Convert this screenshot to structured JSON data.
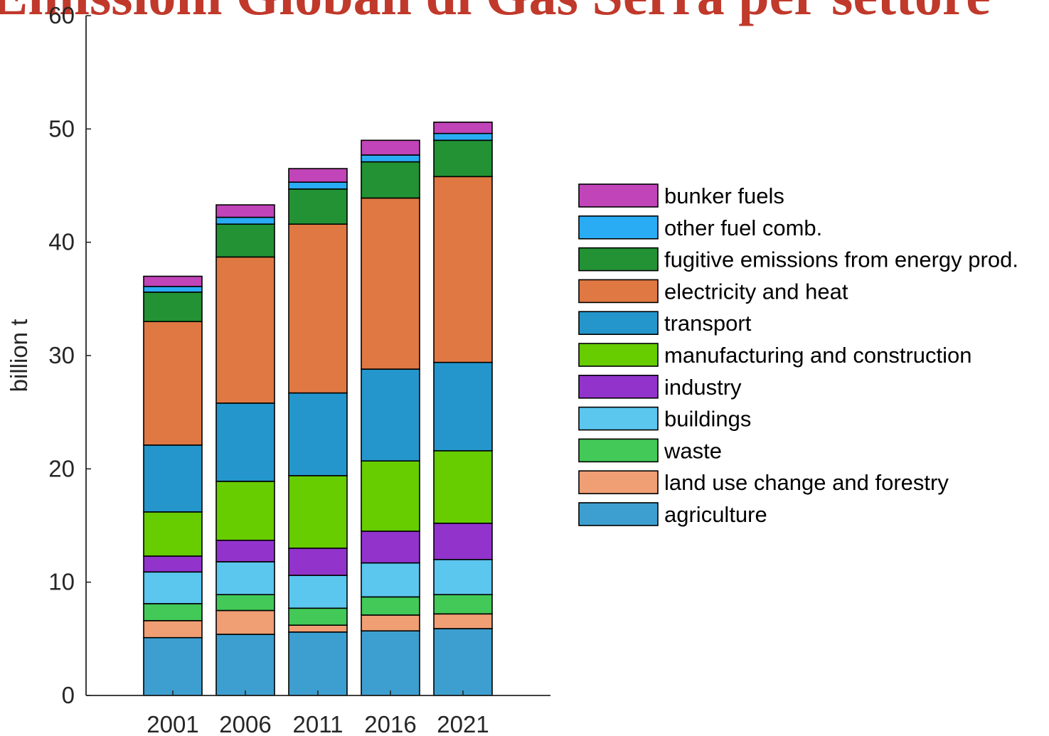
{
  "chart_data": {
    "type": "bar",
    "stacked": true,
    "title": "Emissioni Globali di Gas Serra per settore",
    "xlabel": "",
    "ylabel": "billion t",
    "ylim": [
      0,
      60
    ],
    "yticks": [
      0,
      10,
      20,
      30,
      40,
      50,
      60
    ],
    "grid": false,
    "legend_position": "right",
    "categories": [
      "2001",
      "2006",
      "2011",
      "2016",
      "2021"
    ],
    "series": [
      {
        "name": "agriculture",
        "color": "#3d9fd0",
        "values": [
          5.1,
          5.4,
          5.6,
          5.7,
          5.9
        ]
      },
      {
        "name": "land use change and forestry",
        "color": "#f09e74",
        "values": [
          1.5,
          2.1,
          0.6,
          1.4,
          1.3
        ]
      },
      {
        "name": "waste",
        "color": "#42c957",
        "values": [
          1.5,
          1.4,
          1.5,
          1.6,
          1.7
        ]
      },
      {
        "name": "buildings",
        "color": "#5bc6ee",
        "values": [
          2.8,
          2.9,
          2.9,
          3.0,
          3.1
        ]
      },
      {
        "name": "industry",
        "color": "#9233cc",
        "values": [
          1.4,
          1.9,
          2.4,
          2.8,
          3.2
        ]
      },
      {
        "name": "manufacturing and construction",
        "color": "#67cc00",
        "values": [
          3.9,
          5.2,
          6.4,
          6.2,
          6.4
        ]
      },
      {
        "name": "transport",
        "color": "#2496cc",
        "values": [
          5.9,
          6.9,
          7.3,
          8.1,
          7.8
        ]
      },
      {
        "name": "electricity and heat",
        "color": "#e07843",
        "values": [
          10.9,
          12.9,
          14.9,
          15.1,
          16.4
        ]
      },
      {
        "name": "fugitive emissions from energy prod.",
        "color": "#229234",
        "values": [
          2.6,
          2.9,
          3.1,
          3.2,
          3.2
        ]
      },
      {
        "name": "other fuel comb.",
        "color": "#2aacf5",
        "values": [
          0.5,
          0.6,
          0.6,
          0.6,
          0.6
        ]
      },
      {
        "name": "bunker fuels",
        "color": "#c144b8",
        "values": [
          0.9,
          1.1,
          1.2,
          1.3,
          1.0
        ]
      }
    ]
  }
}
